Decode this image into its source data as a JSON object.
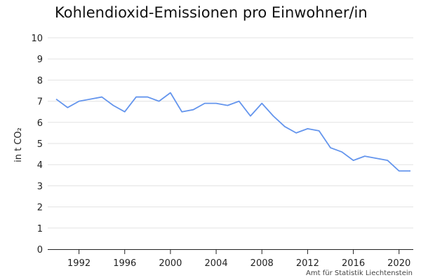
{
  "title": "Kohlendioxid-Emissionen pro Einwohner/in",
  "source": "Amt für Statistik Liechtenstein",
  "colors": {
    "line": "#6495ed",
    "grid": "#e3e3e3",
    "text": "#222222"
  },
  "chart_data": {
    "type": "line",
    "title": "Kohlendioxid-Emissionen pro Einwohner/in",
    "ylabel": "in t CO₂",
    "xlabel": "",
    "xlim": [
      1990,
      2021
    ],
    "ylim": [
      0,
      10
    ],
    "yticks": [
      0,
      1,
      2,
      3,
      4,
      5,
      6,
      7,
      8,
      9,
      10
    ],
    "xticks": [
      1992,
      1996,
      2000,
      2004,
      2008,
      2012,
      2016,
      2020
    ],
    "grid": "horizontal",
    "series": [
      {
        "x": [
          1990,
          1991,
          1992,
          1993,
          1994,
          1995,
          1996,
          1997,
          1998,
          1999,
          2000,
          2001,
          2002,
          2003,
          2004,
          2005,
          2006,
          2007,
          2008,
          2009,
          2010,
          2011,
          2012,
          2013,
          2014,
          2015,
          2016,
          2017,
          2018,
          2019,
          2020,
          2021
        ],
        "values": [
          7.1,
          6.7,
          7.0,
          7.1,
          7.2,
          6.8,
          6.5,
          7.2,
          7.2,
          7.0,
          7.4,
          6.5,
          6.6,
          6.9,
          6.9,
          6.8,
          7.0,
          6.3,
          6.9,
          6.3,
          5.8,
          5.5,
          5.7,
          5.6,
          4.8,
          4.6,
          4.2,
          4.4,
          4.3,
          4.2,
          3.7,
          3.7
        ]
      }
    ]
  }
}
